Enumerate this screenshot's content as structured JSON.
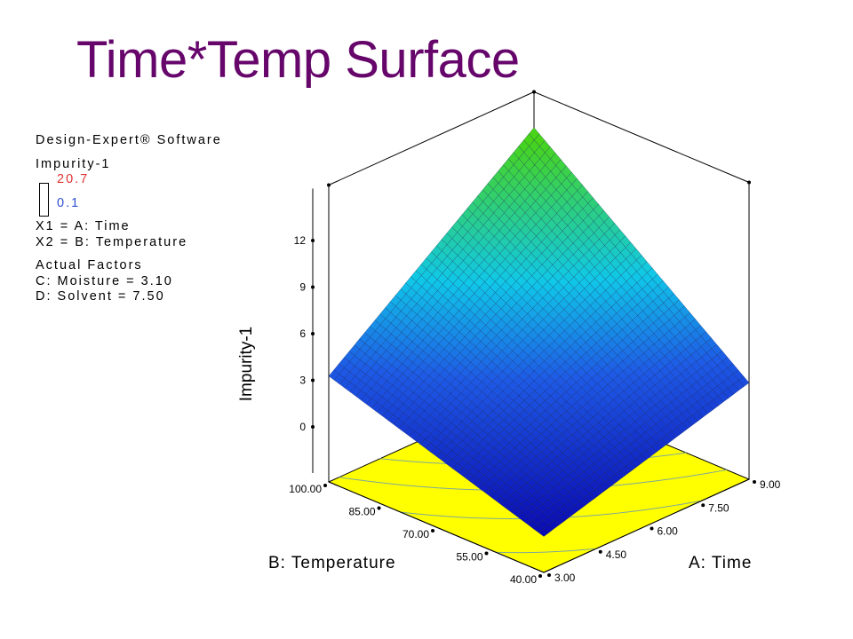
{
  "slide": {
    "title": "Time*Temp Surface"
  },
  "legend": {
    "software": "Design-Expert® Software",
    "response_name": "Impurity-1",
    "range_high": "20.7",
    "range_low": "0.1",
    "x1": "X1 = A: Time",
    "x2": "X2 = B: Temperature",
    "actual_factors_header": "Actual Factors",
    "factor_c": "C: Moisture = 3.10",
    "factor_d": "D: Solvent = 7.50"
  },
  "colors": {
    "title": "#66066b",
    "floor": "#ffff00",
    "surface_low": "#1010c0",
    "surface_mid": "#00ccee",
    "surface_high": "#40d020",
    "legend_high": "#e03030",
    "legend_low": "#3050d0"
  },
  "chart_data": {
    "type": "surface3d",
    "zlabel": "Impurity-1",
    "xlabel": "A: Time",
    "ylabel": "B: Temperature",
    "x_ticks": [
      "3.00",
      "4.50",
      "6.00",
      "7.50",
      "9.00"
    ],
    "y_ticks": [
      "40.00",
      "55.00",
      "70.00",
      "85.00",
      "100.00"
    ],
    "z_ticks": [
      "0",
      "3",
      "6",
      "9",
      "12"
    ],
    "xlim": [
      3,
      9
    ],
    "ylim": [
      40,
      100
    ],
    "zlim": [
      0,
      12
    ],
    "corner_values": [
      {
        "time": 3,
        "temperature": 40,
        "impurity": -1.0
      },
      {
        "time": 9,
        "temperature": 40,
        "impurity": 2.9
      },
      {
        "time": 3,
        "temperature": 100,
        "impurity": 3.5
      },
      {
        "time": 9,
        "temperature": 100,
        "impurity": 13.5
      }
    ],
    "grid": true
  }
}
